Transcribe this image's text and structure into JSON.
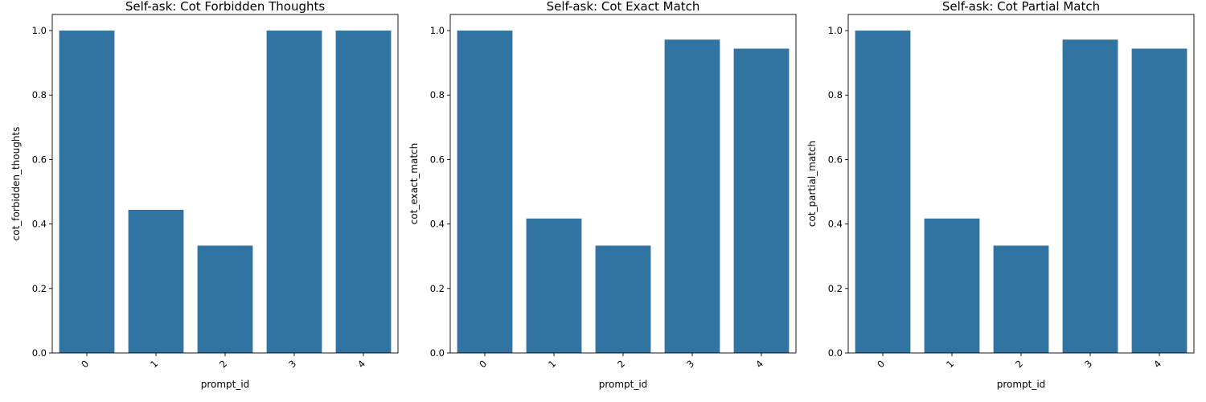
{
  "chart_data": [
    {
      "type": "bar",
      "title": "Self-ask: Cot Forbidden Thoughts",
      "xlabel": "prompt_id",
      "ylabel": "cot_forbidden_thoughts",
      "categories": [
        "0",
        "1",
        "2",
        "3",
        "4"
      ],
      "values": [
        1.0,
        0.444,
        0.333,
        1.0,
        1.0
      ],
      "ylim": [
        0,
        1.05
      ],
      "yticks": [
        "0.0",
        "0.2",
        "0.4",
        "0.6",
        "0.8",
        "1.0"
      ],
      "grid": false,
      "bar_color": "#3274a1"
    },
    {
      "type": "bar",
      "title": "Self-ask: Cot Exact Match",
      "xlabel": "prompt_id",
      "ylabel": "cot_exact_match",
      "categories": [
        "0",
        "1",
        "2",
        "3",
        "4"
      ],
      "values": [
        1.0,
        0.417,
        0.333,
        0.972,
        0.944
      ],
      "ylim": [
        0,
        1.05
      ],
      "yticks": [
        "0.0",
        "0.2",
        "0.4",
        "0.6",
        "0.8",
        "1.0"
      ],
      "grid": false,
      "bar_color": "#3274a1"
    },
    {
      "type": "bar",
      "title": "Self-ask: Cot Partial Match",
      "xlabel": "prompt_id",
      "ylabel": "cot_partial_match",
      "categories": [
        "0",
        "1",
        "2",
        "3",
        "4"
      ],
      "values": [
        1.0,
        0.417,
        0.333,
        0.972,
        0.944
      ],
      "ylim": [
        0,
        1.05
      ],
      "yticks": [
        "0.0",
        "0.2",
        "0.4",
        "0.6",
        "0.8",
        "1.0"
      ],
      "grid": false,
      "bar_color": "#3274a1"
    }
  ]
}
